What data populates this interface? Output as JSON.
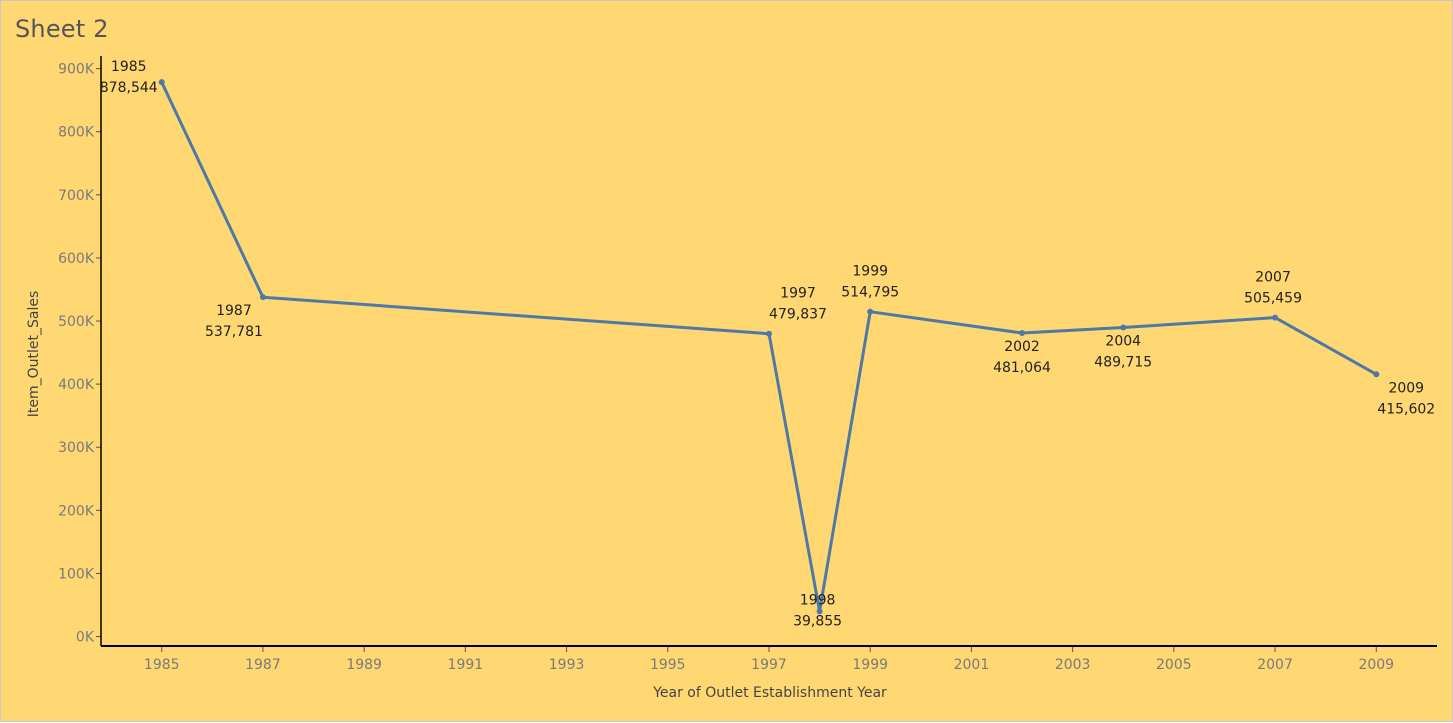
{
  "sheet": {
    "title": "Sheet 2"
  },
  "colors": {
    "background": "#ffd874",
    "line": "#4e79a7",
    "axis": "#000000",
    "tick_text": "#7a7a7a"
  },
  "chart_data": {
    "type": "line",
    "title": "Sheet 2",
    "xlabel": "Year of Outlet Establishment Year",
    "ylabel": "Item_Outlet_Sales",
    "x_ticks": [
      "1985",
      "1987",
      "1989",
      "1991",
      "1993",
      "1995",
      "1997",
      "1999",
      "2001",
      "2003",
      "2005",
      "2007",
      "2009"
    ],
    "y_ticks": [
      "0K",
      "100K",
      "200K",
      "300K",
      "400K",
      "500K",
      "600K",
      "700K",
      "800K",
      "900K"
    ],
    "xlim": [
      1983.8,
      2010.2
    ],
    "ylim": [
      -15000,
      920000
    ],
    "grid": false,
    "series": [
      {
        "points": [
          {
            "x": 1985,
            "y": 878544,
            "year_label": "1985",
            "value_label": "878,544"
          },
          {
            "x": 1987,
            "y": 537781,
            "year_label": "1987",
            "value_label": "537,781"
          },
          {
            "x": 1997,
            "y": 479837,
            "year_label": "1997",
            "value_label": "479,837"
          },
          {
            "x": 1998,
            "y": 39855,
            "year_label": "1998",
            "value_label": "39,855"
          },
          {
            "x": 1999,
            "y": 514795,
            "year_label": "1999",
            "value_label": "514,795"
          },
          {
            "x": 2002,
            "y": 481064,
            "year_label": "2002",
            "value_label": "481,064"
          },
          {
            "x": 2004,
            "y": 489715,
            "year_label": "2004",
            "value_label": "489,715"
          },
          {
            "x": 2007,
            "y": 505459,
            "year_label": "2007",
            "value_label": "505,459"
          },
          {
            "x": 2009,
            "y": 415602,
            "year_label": "2009",
            "value_label": "415,602"
          }
        ]
      }
    ]
  }
}
